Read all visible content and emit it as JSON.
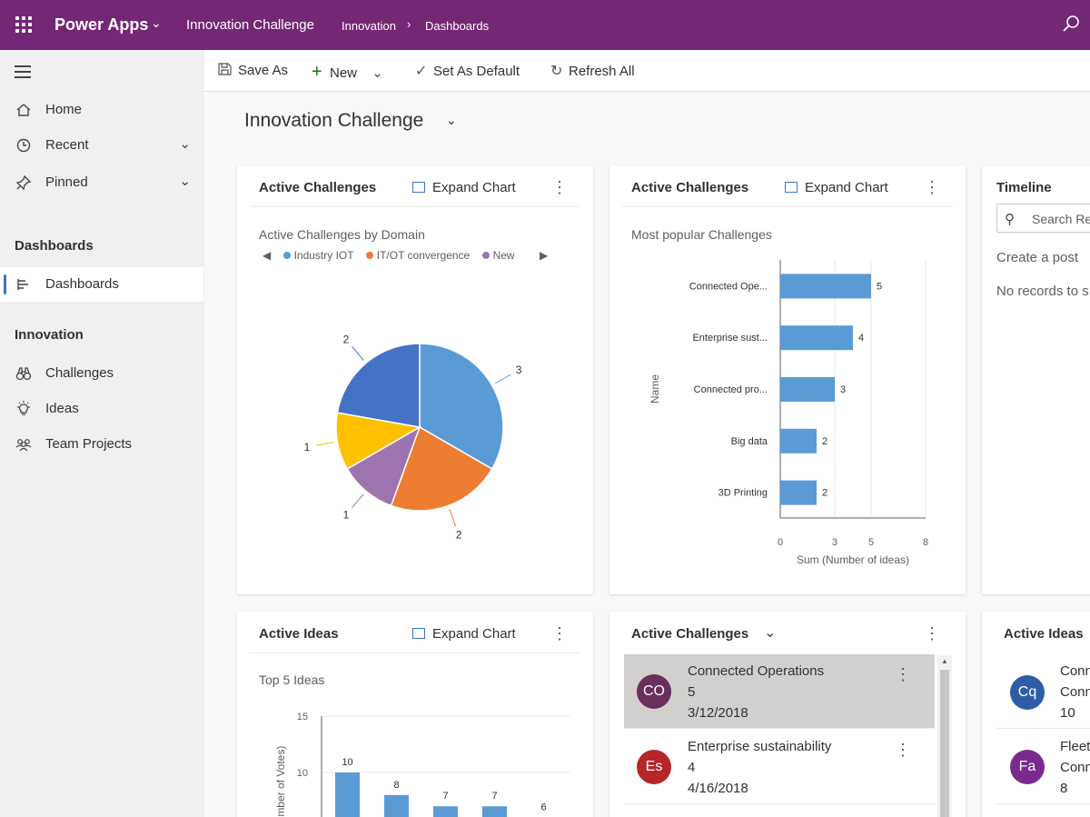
{
  "topbar": {
    "app_name": "Power Apps",
    "environment": "Innovation Challenge",
    "breadcrumb": [
      "Innovation",
      "Dashboards"
    ]
  },
  "sidebar": {
    "items": [
      {
        "label": "Home",
        "icon": "home-icon"
      },
      {
        "label": "Recent",
        "icon": "clock-icon"
      },
      {
        "label": "Pinned",
        "icon": "pin-icon"
      }
    ],
    "section_dashboards": "Dashboards",
    "dashboards_item": "Dashboards",
    "section_innovation": "Innovation",
    "innovation_items": [
      {
        "label": "Challenges",
        "icon": "binoculars-icon"
      },
      {
        "label": "Ideas",
        "icon": "lightbulb-icon"
      },
      {
        "label": "Team Projects",
        "icon": "team-icon"
      }
    ]
  },
  "commandbar": {
    "save_as": "Save As",
    "new": "New",
    "set_default": "Set As Default",
    "refresh_all": "Refresh All"
  },
  "page": {
    "title": "Innovation Challenge"
  },
  "cards": {
    "challenges_pie": {
      "title": "Active Challenges",
      "expand": "Expand Chart",
      "subtitle": "Active Challenges by Domain"
    },
    "challenges_bar": {
      "title": "Active Challenges",
      "expand": "Expand Chart",
      "subtitle": "Most popular Challenges"
    },
    "timeline": {
      "title": "Timeline",
      "search_placeholder": "Search Re",
      "create_post": "Create a post",
      "no_records": "No records to s"
    },
    "ideas_chart": {
      "title": "Active Ideas",
      "expand": "Expand Chart",
      "subtitle": "Top 5 Ideas"
    },
    "challenges_list": {
      "title": "Active Challenges",
      "items": [
        {
          "initials": "CO",
          "name": "Connected Operations",
          "count": "5",
          "date": "3/12/2018",
          "color": "#6b2f5b"
        },
        {
          "initials": "Es",
          "name": "Enterprise sustainability",
          "count": "4",
          "date": "4/16/2018",
          "color": "#b4262a"
        }
      ]
    },
    "ideas_list": {
      "title": "Active Ideas",
      "items": [
        {
          "initials": "Cq",
          "line1": "Conn",
          "line2": "Conn",
          "line3": "10",
          "color": "#2f5da5"
        },
        {
          "initials": "Fa",
          "line1": "Fleet",
          "line2": "Conn",
          "line3": "8",
          "color": "#7a2a8e"
        }
      ]
    }
  },
  "chart_data": [
    {
      "type": "pie",
      "title": "Active Challenges by Domain",
      "legend": [
        "Industry IOT",
        "IT/OT convergence",
        "New"
      ],
      "slices": [
        {
          "value": 3,
          "color": "#5b9bd5"
        },
        {
          "value": 2,
          "color": "#ed7d31"
        },
        {
          "value": 1,
          "color": "#9e74b0"
        },
        {
          "value": 1,
          "color": "#ffc000"
        },
        {
          "value": 2,
          "color": "#4472c4"
        }
      ],
      "legend_colors": [
        "#5b9bd5",
        "#ed7d31",
        "#9e74b0"
      ]
    },
    {
      "type": "bar",
      "orientation": "horizontal",
      "title": "Most popular Challenges",
      "categories": [
        "Connected Ope...",
        "Enterprise sust...",
        "Connected pro...",
        "Big data",
        "3D Printing"
      ],
      "values": [
        5,
        4,
        3,
        2,
        2
      ],
      "xlabel": "Sum (Number of ideas)",
      "ylabel": "Name",
      "xticks": [
        "0",
        "3",
        "5",
        "8"
      ],
      "xlim": [
        0,
        8
      ],
      "color": "#5b9bd5"
    },
    {
      "type": "bar",
      "title": "Top 5 Ideas",
      "values": [
        10,
        8,
        7,
        7,
        6
      ],
      "ylabel": "umber of Votes)",
      "yticks": [
        "15",
        "10"
      ],
      "ylim": [
        0,
        15
      ],
      "color": "#5b9bd5"
    }
  ]
}
